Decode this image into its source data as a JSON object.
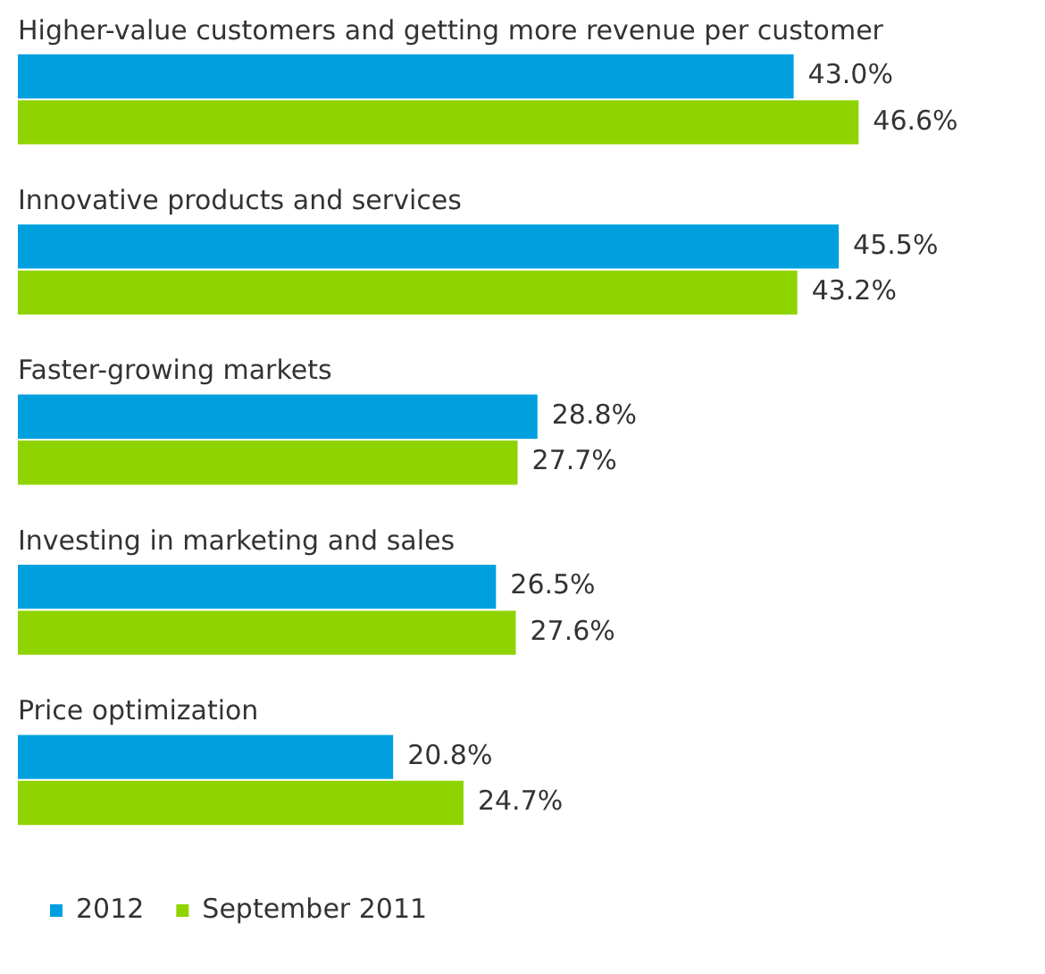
{
  "chart_data": {
    "type": "bar",
    "orientation": "horizontal",
    "categories": [
      "Higher-value customers and getting more revenue per customer",
      "Innovative products and services",
      "Faster-growing markets",
      "Investing in marketing and sales",
      "Price optimization"
    ],
    "series": [
      {
        "name": "2012",
        "color": "#00a0df",
        "values": [
          43.0,
          45.5,
          28.8,
          26.5,
          20.8
        ],
        "value_labels": [
          "43.0%",
          "45.5%",
          "28.8%",
          "26.5%",
          "20.8%"
        ]
      },
      {
        "name": "September 2011",
        "color": "#8fd400",
        "values": [
          46.6,
          43.2,
          27.7,
          27.6,
          24.7
        ],
        "value_labels": [
          "46.6%",
          "43.2%",
          "27.7%",
          "27.6%",
          "24.7%"
        ]
      }
    ],
    "legend": "bottom left"
  }
}
